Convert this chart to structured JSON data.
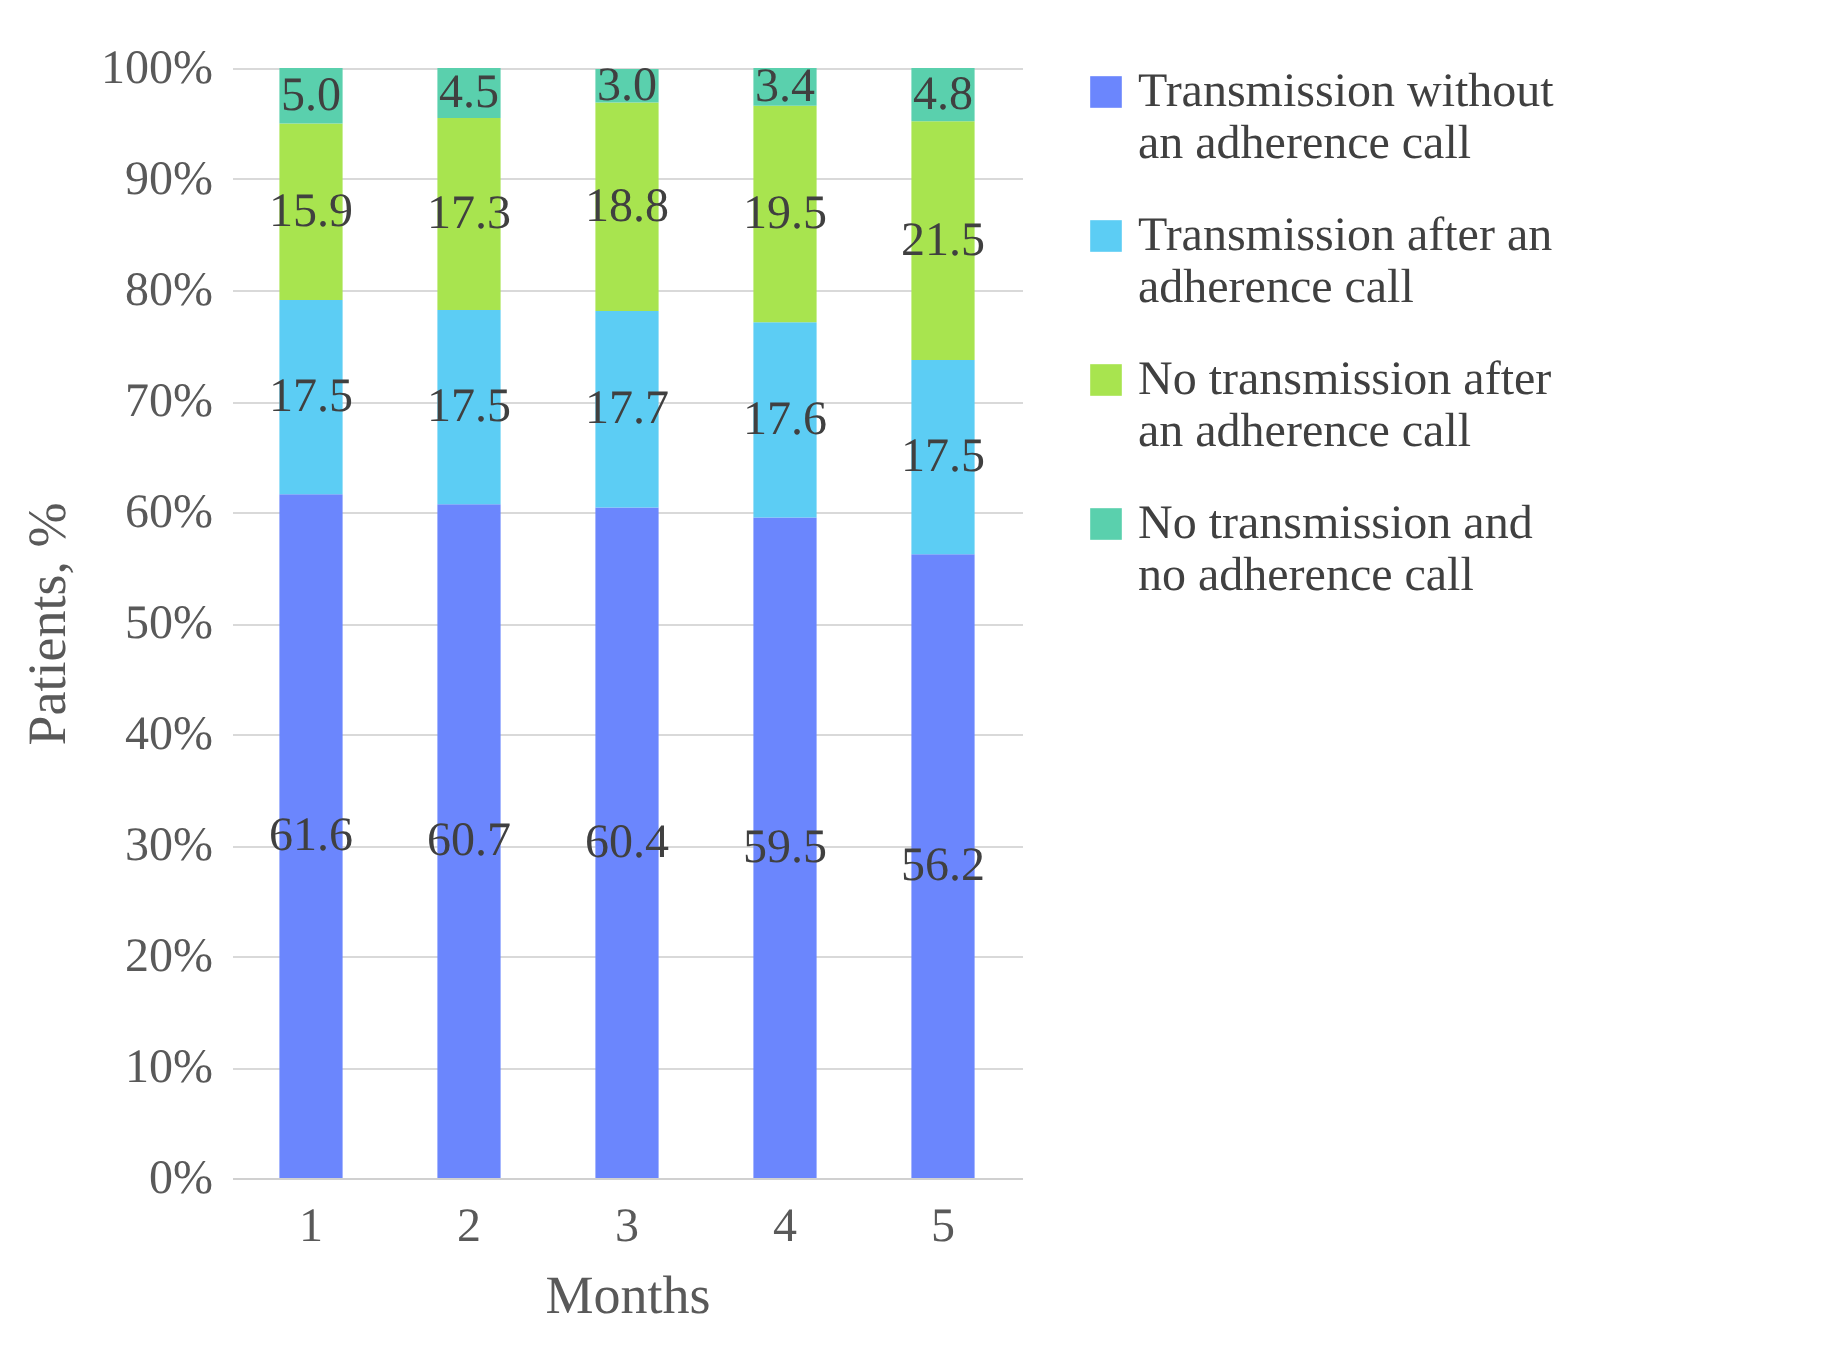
{
  "chart_data": {
    "type": "bar",
    "stacked": true,
    "xlabel": "Months",
    "ylabel": "Patients, %",
    "categories": [
      "1",
      "2",
      "3",
      "4",
      "5"
    ],
    "series": [
      {
        "name": "Transmission without an adherence call",
        "color": "#6b86fd",
        "values": [
          61.6,
          60.7,
          60.4,
          59.5,
          56.2
        ],
        "value_labels": [
          "61.6",
          "60.7",
          "60.4",
          "59.5",
          "56.2"
        ]
      },
      {
        "name": "Transmission after an adherence call",
        "color": "#5ccdf4",
        "values": [
          17.5,
          17.5,
          17.7,
          17.6,
          17.5
        ],
        "value_labels": [
          "17.5",
          "17.5",
          "17.7",
          "17.6",
          "17.5"
        ]
      },
      {
        "name": "No transmission after an adherence call",
        "color": "#a8e44f",
        "values": [
          15.9,
          17.3,
          18.8,
          19.5,
          21.5
        ],
        "value_labels": [
          "15.9",
          "17.3",
          "18.8",
          "19.5",
          "21.5"
        ]
      },
      {
        "name": "No transmission and no adherence call",
        "color": "#5ad0ad",
        "values": [
          5.0,
          4.5,
          3.0,
          3.4,
          4.8
        ],
        "value_labels": [
          "5.0",
          "4.5",
          "3.0",
          "3.4",
          "4.8"
        ]
      }
    ],
    "ylim": [
      0,
      100
    ],
    "yticks": [
      {
        "value": 0,
        "label": "0%"
      },
      {
        "value": 10,
        "label": "10%"
      },
      {
        "value": 20,
        "label": "20%"
      },
      {
        "value": 30,
        "label": "30%"
      },
      {
        "value": 40,
        "label": "40%"
      },
      {
        "value": 50,
        "label": "50%"
      },
      {
        "value": 60,
        "label": "60%"
      },
      {
        "value": 70,
        "label": "70%"
      },
      {
        "value": 80,
        "label": "80%"
      },
      {
        "value": 90,
        "label": "90%"
      },
      {
        "value": 100,
        "label": "100%"
      }
    ],
    "grid": "y",
    "legend": "right"
  }
}
